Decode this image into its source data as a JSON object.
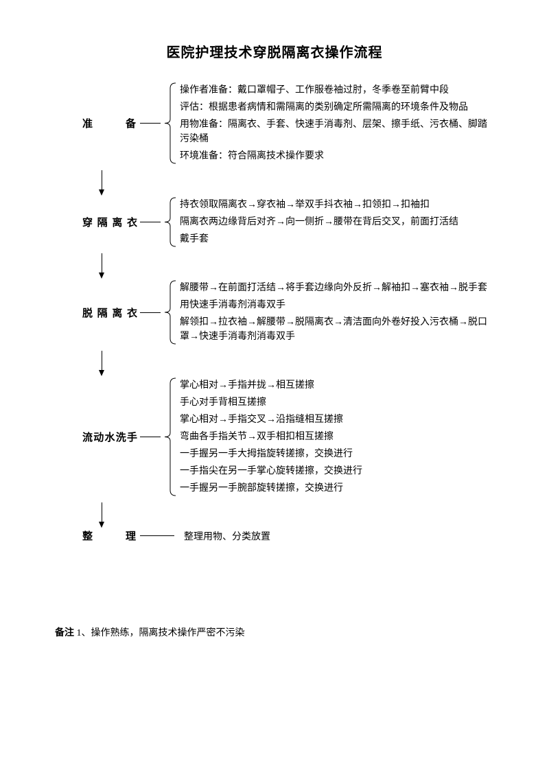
{
  "title": "医院护理技术穿脱隔离衣操作流程",
  "stages": [
    {
      "label": "准　备",
      "items": [
        "操作者准备：戴口罩帽子、工作服卷袖过肘，冬季卷至前臂中段",
        "评估：根据患者病情和需隔离的类别确定所需隔离的环境条件及物品",
        "用物准备：隔离衣、手套、快速手消毒剂、层架、擦手纸、污衣桶、脚踏污染桶",
        "环境准备：符合隔离技术操作要求"
      ]
    },
    {
      "label": "穿隔离衣",
      "items": [
        "持衣领取隔离衣→穿衣袖→举双手抖衣袖→扣领扣→扣袖扣",
        "隔离衣两边缘背后对齐→向一侧折→腰带在背后交叉，前面打活结",
        "戴手套"
      ]
    },
    {
      "label": "脱隔离衣",
      "items": [
        "解腰带→在前面打活结→将手套边缘向外反折→解袖扣→塞衣袖→脱手套",
        "用快速手消毒剂消毒双手",
        "解领扣→拉衣袖→解腰带→脱隔离衣→清洁面向外卷好投入污衣桶→脱口罩→快速手消毒剂消毒双手"
      ]
    },
    {
      "label": "流动水洗手",
      "items": [
        "掌心相对→手指并拢→相互搓擦",
        "手心对手背相互搓擦",
        "掌心相对→手指交叉→沿指缝相互搓擦",
        "弯曲各手指关节→双手相扣相互搓擦",
        "一手握另一手大拇指旋转搓擦，交换进行",
        "一手指尖在另一手掌心旋转搓擦，交换进行",
        "一手握另一手腕部旋转搓擦，交换进行"
      ]
    },
    {
      "label": "整　理",
      "single": "整理用物、分类放置"
    }
  ],
  "note_label": "备注",
  "note_text": " 1、操作熟练，隔离技术操作严密不污染",
  "colors": {
    "fg": "#000000",
    "bg": "#ffffff"
  }
}
